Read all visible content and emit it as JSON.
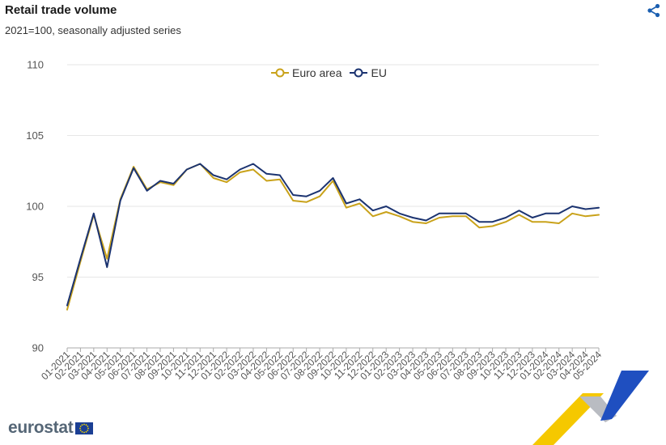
{
  "header": {
    "title": "Retail trade volume",
    "subtitle": "2021=100, seasonally adjusted series",
    "share_icon": "share-icon"
  },
  "brand": {
    "name": "eurostat",
    "flag_icon": "eu-flag-icon"
  },
  "colors": {
    "euro_area": "#c9a21a",
    "eu": "#1b3370",
    "grid": "#e6e6e6",
    "axis": "#aaaaaa",
    "share": "#1b5fb0"
  },
  "chart_data": {
    "type": "line",
    "title": "Retail trade volume",
    "subtitle": "2021=100, seasonally adjusted series",
    "xlabel": "",
    "ylabel": "",
    "ylim": [
      90,
      110
    ],
    "yticks": [
      "90",
      "95",
      "100",
      "105",
      "110"
    ],
    "grid": true,
    "legend_position": "top-center",
    "categories": [
      "01-2021",
      "02-2021",
      "03-2021",
      "04-2021",
      "05-2021",
      "06-2021",
      "07-2021",
      "08-2021",
      "09-2021",
      "10-2021",
      "11-2021",
      "12-2021",
      "01-2022",
      "02-2022",
      "03-2022",
      "04-2022",
      "05-2022",
      "06-2022",
      "07-2022",
      "08-2022",
      "09-2022",
      "10-2022",
      "11-2022",
      "12-2022",
      "01-2023",
      "02-2023",
      "03-2023",
      "04-2023",
      "05-2023",
      "06-2023",
      "07-2023",
      "08-2023",
      "09-2023",
      "10-2023",
      "11-2023",
      "12-2023",
      "01-2024",
      "02-2024",
      "03-2024",
      "04-2024",
      "05-2024"
    ],
    "series": [
      {
        "name": "Euro area",
        "values": [
          92.7,
          96.1,
          99.4,
          96.3,
          100.5,
          102.8,
          101.2,
          101.7,
          101.5,
          102.6,
          103.0,
          102.0,
          101.7,
          102.4,
          102.6,
          101.8,
          101.9,
          100.4,
          100.3,
          100.7,
          101.8,
          99.9,
          100.2,
          99.3,
          99.6,
          99.3,
          98.9,
          98.8,
          99.2,
          99.3,
          99.3,
          98.5,
          98.6,
          98.9,
          99.4,
          98.9,
          98.9,
          98.8,
          99.5,
          99.3,
          99.4
        ]
      },
      {
        "name": "EU",
        "values": [
          93.0,
          96.3,
          99.5,
          95.7,
          100.4,
          102.7,
          101.1,
          101.8,
          101.6,
          102.6,
          103.0,
          102.2,
          101.9,
          102.6,
          103.0,
          102.3,
          102.2,
          100.8,
          100.7,
          101.1,
          102.0,
          100.2,
          100.5,
          99.7,
          100.0,
          99.5,
          99.2,
          99.0,
          99.5,
          99.5,
          99.5,
          98.9,
          98.9,
          99.2,
          99.7,
          99.2,
          99.5,
          99.5,
          100.0,
          99.8,
          99.9
        ]
      }
    ]
  }
}
